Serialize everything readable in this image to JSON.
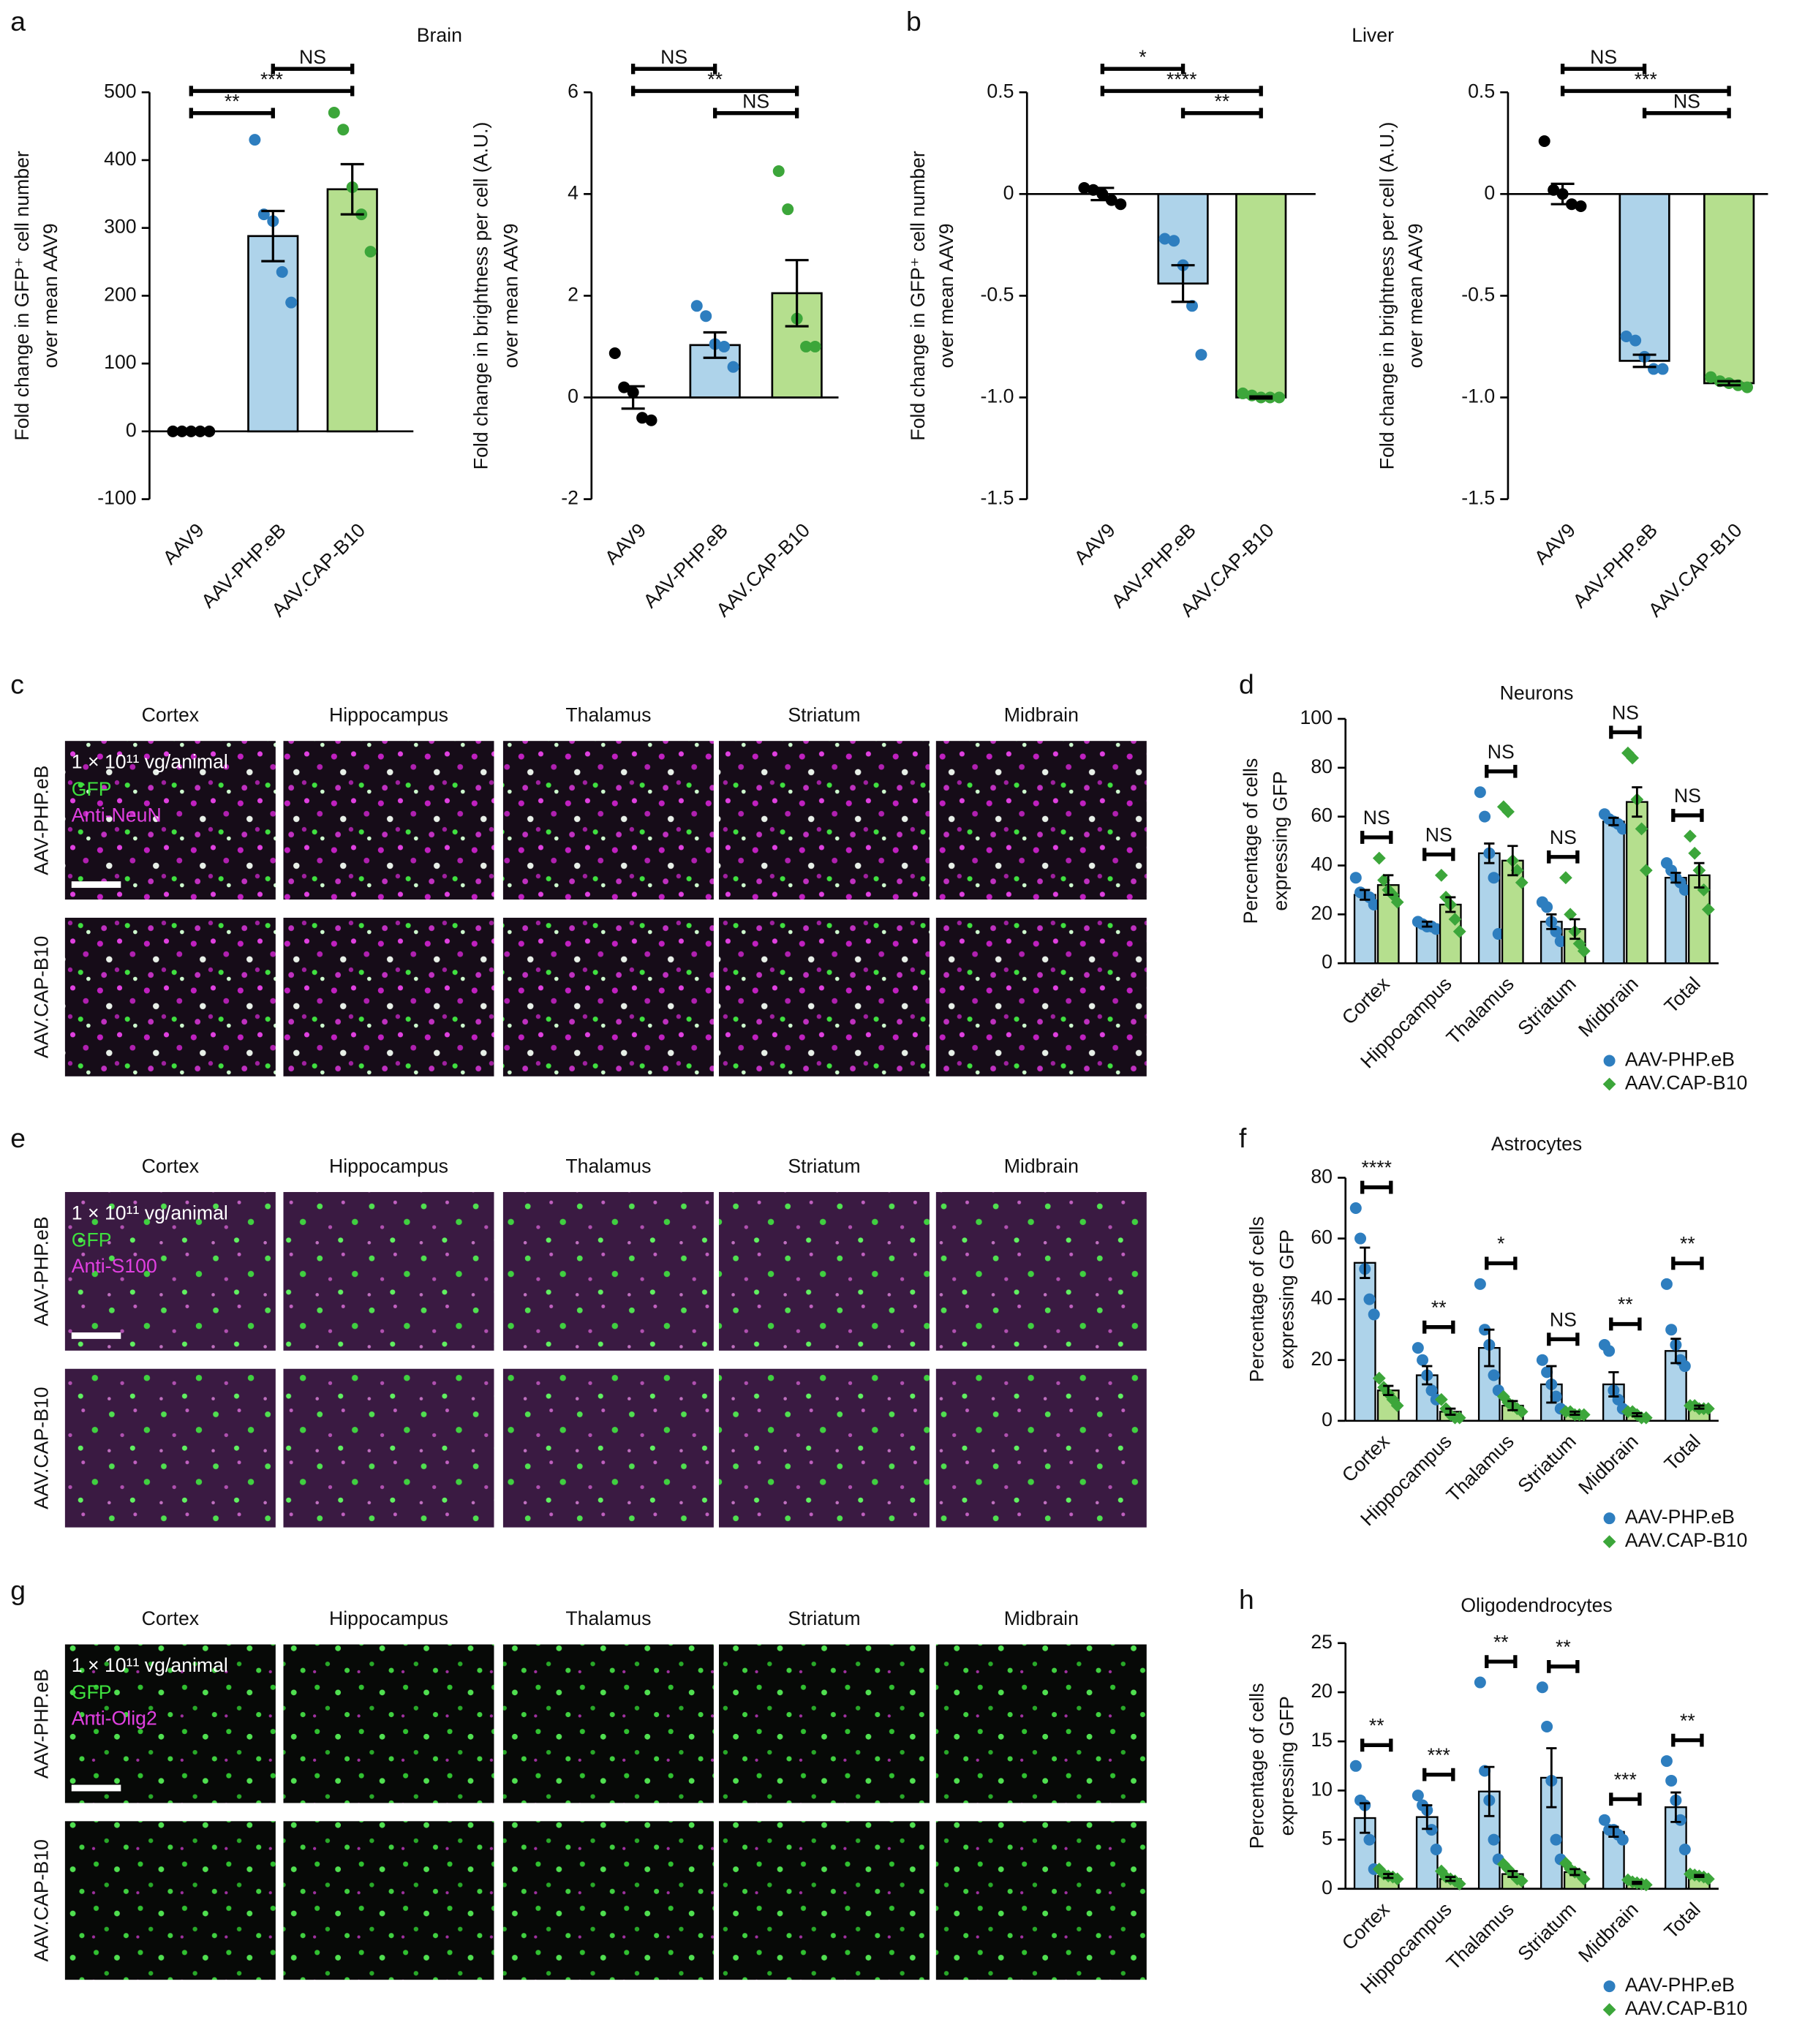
{
  "panel_labels": [
    "a",
    "b",
    "c",
    "d",
    "e",
    "f",
    "g",
    "h"
  ],
  "chart_data": [
    {
      "type": "bar",
      "title": "Brain",
      "ylabel": [
        "Fold change in GFP⁺ cell number",
        "over mean AAV9"
      ],
      "categories": [
        "AAV9",
        "AAV-PHP.eB",
        "AAV.CAP-B10"
      ],
      "values": [
        0,
        288,
        357
      ],
      "errors": [
        2,
        37,
        37
      ],
      "points": [
        [
          0,
          0,
          0,
          0,
          0
        ],
        [
          430,
          320,
          310,
          235,
          190
        ],
        [
          470,
          445,
          360,
          320,
          265
        ]
      ],
      "bar_colors": [
        "#bfbfbf",
        "#aed3ea",
        "#b5df8e"
      ],
      "point_colors": [
        "#000000",
        "#2e7ebf",
        "#3ca63a"
      ],
      "ylim": [
        -100,
        500
      ],
      "yticks": [
        -100,
        0,
        100,
        200,
        300,
        400,
        500
      ],
      "significance": [
        {
          "from": 0,
          "to": 1,
          "label": "**"
        },
        {
          "from": 0,
          "to": 2,
          "label": "***"
        },
        {
          "from": 1,
          "to": 2,
          "label": "NS"
        }
      ]
    },
    {
      "type": "bar",
      "ylabel": [
        "Fold change in brightness per cell (A.U.)",
        "over mean AAV9"
      ],
      "categories": [
        "AAV9",
        "AAV-PHP.eB",
        "AAV.CAP-B10"
      ],
      "values": [
        0,
        1.03,
        2.05
      ],
      "errors": [
        0.22,
        0.25,
        0.65
      ],
      "points": [
        [
          0.87,
          0.2,
          0.1,
          -0.4,
          -0.45
        ],
        [
          1.8,
          1.6,
          1.05,
          1.0,
          0.6
        ],
        [
          4.45,
          3.7,
          1.55,
          1.0,
          1.0
        ]
      ],
      "bar_colors": [
        "#bfbfbf",
        "#aed3ea",
        "#b5df8e"
      ],
      "point_colors": [
        "#000000",
        "#2e7ebf",
        "#3ca63a"
      ],
      "ylim": [
        -2,
        6
      ],
      "yticks": [
        -2,
        0,
        2,
        4,
        6
      ],
      "significance": [
        {
          "from": 1,
          "to": 2,
          "label": "NS"
        },
        {
          "from": 0,
          "to": 2,
          "label": "**"
        },
        {
          "from": 0,
          "to": 1,
          "label": "NS"
        }
      ]
    },
    {
      "type": "bar",
      "title": "Liver",
      "ylabel": [
        "Fold change in GFP⁺ cell number",
        "over mean AAV9"
      ],
      "categories": [
        "AAV9",
        "AAV-PHP.eB",
        "AAV.CAP-B10"
      ],
      "values": [
        0,
        -0.44,
        -1.0
      ],
      "errors": [
        0.03,
        0.09,
        0.005
      ],
      "points": [
        [
          0.03,
          0.02,
          0.0,
          -0.03,
          -0.05
        ],
        [
          -0.22,
          -0.23,
          -0.35,
          -0.55,
          -0.79
        ],
        [
          -0.98,
          -0.99,
          -1.0,
          -1.0,
          -1.0
        ]
      ],
      "bar_colors": [
        "#bfbfbf",
        "#aed3ea",
        "#b5df8e"
      ],
      "point_colors": [
        "#000000",
        "#2e7ebf",
        "#3ca63a"
      ],
      "ylim": [
        -1.5,
        0.5
      ],
      "yticks": [
        -1.5,
        {
          "value": -1,
          "label": "-1.0"
        },
        -0.5,
        0,
        0.5
      ],
      "significance": [
        {
          "from": 1,
          "to": 2,
          "label": "**"
        },
        {
          "from": 0,
          "to": 2,
          "label": "****"
        },
        {
          "from": 0,
          "to": 1,
          "label": "*"
        }
      ]
    },
    {
      "type": "bar",
      "ylabel": [
        "Fold change in brightness per cell (A.U.)",
        "over mean AAV9"
      ],
      "categories": [
        "AAV9",
        "AAV-PHP.eB",
        "AAV.CAP-B10"
      ],
      "values": [
        0,
        -0.82,
        -0.93
      ],
      "errors": [
        0.05,
        0.03,
        0.01
      ],
      "points": [
        [
          0.26,
          0.02,
          0.0,
          -0.05,
          -0.06
        ],
        [
          -0.7,
          -0.72,
          -0.8,
          -0.86,
          -0.86
        ],
        [
          -0.9,
          -0.92,
          -0.93,
          -0.94,
          -0.95
        ]
      ],
      "bar_colors": [
        "#bfbfbf",
        "#aed3ea",
        "#b5df8e"
      ],
      "point_colors": [
        "#000000",
        "#2e7ebf",
        "#3ca63a"
      ],
      "ylim": [
        -1.5,
        0.5
      ],
      "yticks": [
        -1.5,
        {
          "value": -1,
          "label": "-1.0"
        },
        -0.5,
        0,
        0.5
      ],
      "significance": [
        {
          "from": 1,
          "to": 2,
          "label": "NS"
        },
        {
          "from": 0,
          "to": 2,
          "label": "***"
        },
        {
          "from": 0,
          "to": 1,
          "label": "NS"
        }
      ]
    },
    {
      "type": "grouped_bar",
      "title": "Neurons",
      "ylabel": [
        "Percentage of cells",
        "expressing GFP"
      ],
      "categories": [
        "Cortex",
        "Hippocampus",
        "Thalamus",
        "Striatum",
        "Midbrain",
        "Total"
      ],
      "ylim": [
        0,
        100
      ],
      "yticks": [
        0,
        20,
        40,
        60,
        80,
        100
      ],
      "significance": [
        "NS",
        "NS",
        "NS",
        "NS",
        "NS",
        "NS"
      ],
      "series": [
        {
          "name": "AAV-PHP.eB",
          "color": "#aed3ea",
          "point_color": "#2e7ebf",
          "marker": "circle",
          "values": [
            28,
            16,
            45,
            17,
            58,
            35
          ],
          "errors": [
            2,
            1,
            4,
            3,
            1.5,
            2
          ],
          "points": [
            [
              35,
              29,
              28,
              27,
              24
            ],
            [
              17,
              16,
              15,
              15,
              14
            ],
            [
              70,
              60,
              45,
              35,
              12
            ],
            [
              25,
              23,
              17,
              13,
              9
            ],
            [
              61,
              59,
              58,
              57,
              55
            ],
            [
              41,
              38,
              35,
              33,
              30
            ]
          ]
        },
        {
          "name": "AAV.CAP-B10",
          "color": "#b5df8e",
          "point_color": "#3ca63a",
          "marker": "diamond",
          "values": [
            32,
            24,
            42,
            14,
            66,
            36
          ],
          "errors": [
            4,
            3,
            6,
            4,
            6,
            5
          ],
          "points": [
            [
              43,
              34,
              30,
              28,
              25
            ],
            [
              36,
              27,
              24,
              18,
              13
            ],
            [
              64,
              62,
              42,
              38,
              33
            ],
            [
              35,
              20,
              13,
              8,
              5
            ],
            [
              86,
              84,
              67,
              55,
              38
            ],
            [
              52,
              45,
              38,
              30,
              22
            ]
          ]
        }
      ]
    },
    {
      "type": "grouped_bar",
      "title": "Astrocytes",
      "ylabel": [
        "Percentage of cells",
        "expressing GFP"
      ],
      "categories": [
        "Cortex",
        "Hippocampus",
        "Thalamus",
        "Striatum",
        "Midbrain",
        "Total"
      ],
      "ylim": [
        0,
        80
      ],
      "yticks": [
        0,
        20,
        40,
        60,
        80
      ],
      "significance": [
        "****",
        "**",
        "*",
        "NS",
        "**",
        "**"
      ],
      "series": [
        {
          "name": "AAV-PHP.eB",
          "color": "#aed3ea",
          "point_color": "#2e7ebf",
          "marker": "circle",
          "values": [
            52,
            15,
            24,
            12,
            12,
            23
          ],
          "errors": [
            5,
            3,
            6,
            6,
            4,
            4
          ],
          "points": [
            [
              70,
              60,
              50,
              40,
              35
            ],
            [
              24,
              20,
              15,
              10,
              7
            ],
            [
              45,
              30,
              25,
              15,
              10
            ],
            [
              20,
              16,
              12,
              8,
              4
            ],
            [
              25,
              23,
              10,
              7,
              4
            ],
            [
              45,
              30,
              25,
              20,
              18
            ]
          ]
        },
        {
          "name": "AAV.CAP-B10",
          "color": "#b5df8e",
          "point_color": "#3ca63a",
          "marker": "diamond",
          "values": [
            10,
            3,
            5,
            2.5,
            2,
            4.5
          ],
          "errors": [
            1.5,
            1,
            1.5,
            0.5,
            0.5,
            0.5
          ],
          "points": [
            [
              14,
              11,
              9,
              7,
              5
            ],
            [
              7,
              4,
              2,
              1,
              1
            ],
            [
              8,
              6,
              5,
              4,
              3
            ],
            [
              3,
              3,
              2,
              2,
              2
            ],
            [
              3,
              3,
              2,
              1,
              1
            ],
            [
              5,
              5,
              4,
              4,
              4
            ]
          ]
        }
      ]
    },
    {
      "type": "grouped_bar",
      "title": "Oligodendrocytes",
      "ylabel": [
        "Percentage of cells",
        "expressing GFP"
      ],
      "categories": [
        "Cortex",
        "Hippocampus",
        "Thalamus",
        "Striatum",
        "Midbrain",
        "Total"
      ],
      "ylim": [
        0,
        25
      ],
      "yticks": [
        0,
        5,
        10,
        15,
        20,
        25
      ],
      "significance": [
        "**",
        "***",
        "**",
        "**",
        "***",
        "**"
      ],
      "series": [
        {
          "name": "AAV-PHP.eB",
          "color": "#aed3ea",
          "point_color": "#2e7ebf",
          "marker": "circle",
          "values": [
            7.2,
            7.3,
            9.9,
            11.3,
            5.8,
            8.3
          ],
          "errors": [
            1.5,
            1.2,
            2.5,
            3,
            0.5,
            1.5
          ],
          "points": [
            [
              12.5,
              9,
              8.5,
              5,
              2
            ],
            [
              9.5,
              8.5,
              8,
              6,
              4
            ],
            [
              21,
              12,
              9,
              5,
              3
            ],
            [
              20.5,
              16.5,
              11,
              5,
              3
            ],
            [
              7,
              6,
              6,
              5.5,
              5
            ],
            [
              13,
              11,
              9,
              7,
              4
            ]
          ]
        },
        {
          "name": "AAV.CAP-B10",
          "color": "#b5df8e",
          "point_color": "#3ca63a",
          "marker": "diamond",
          "values": [
            1.3,
            1.0,
            1.5,
            1.7,
            0.6,
            1.3
          ],
          "errors": [
            0.2,
            0.2,
            0.3,
            0.3,
            0.1,
            0.1
          ],
          "points": [
            [
              2,
              1.5,
              1.3,
              1.2,
              1
            ],
            [
              1.8,
              1.2,
              1,
              0.8,
              0.5
            ],
            [
              2.5,
              2,
              1.5,
              1,
              0.8
            ],
            [
              2.6,
              2,
              1.7,
              1.5,
              1
            ],
            [
              0.9,
              0.7,
              0.6,
              0.5,
              0.4
            ],
            [
              1.5,
              1.4,
              1.3,
              1.2,
              1
            ]
          ]
        }
      ]
    }
  ],
  "image_panels": [
    {
      "columns": [
        "Cortex",
        "Hippocampus",
        "Thalamus",
        "Striatum",
        "Midbrain"
      ],
      "rows": [
        "AAV-PHP.eB",
        "AAV.CAP-B10"
      ],
      "dose": "1 × 10¹¹ vg/animal",
      "stains": [
        "GFP",
        "Anti-NeuN"
      ]
    },
    {
      "columns": [
        "Cortex",
        "Hippocampus",
        "Thalamus",
        "Striatum",
        "Midbrain"
      ],
      "rows": [
        "AAV-PHP.eB",
        "AAV.CAP-B10"
      ],
      "dose": "1 × 10¹¹ vg/animal",
      "stains": [
        "GFP",
        "Anti-S100"
      ]
    },
    {
      "columns": [
        "Cortex",
        "Hippocampus",
        "Thalamus",
        "Striatum",
        "Midbrain"
      ],
      "rows": [
        "AAV-PHP.eB",
        "AAV.CAP-B10"
      ],
      "dose": "1 × 10¹¹ vg/animal",
      "stains": [
        "GFP",
        "Anti-Olig2"
      ]
    }
  ]
}
